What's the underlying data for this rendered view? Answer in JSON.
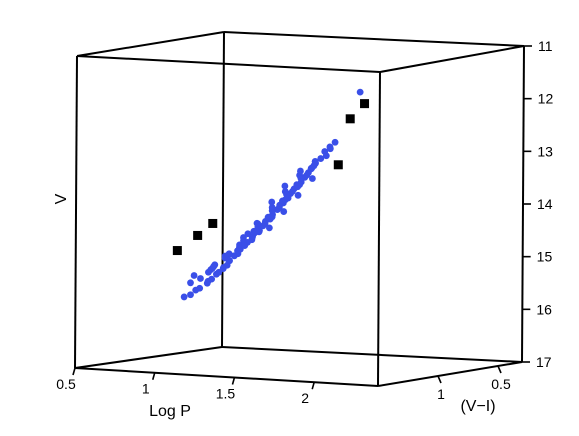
{
  "chart_data": {
    "type": "scatter3d",
    "axes": {
      "x": {
        "label": "Log P",
        "range": [
          0.5,
          2.4
        ],
        "ticks": [
          0.5,
          1,
          1.5,
          2
        ],
        "tick_labels": [
          "0.5",
          "1",
          "1.5",
          "2"
        ]
      },
      "y": {
        "label": "(V−I)",
        "range": [
          0.3,
          1.5
        ],
        "ticks": [
          0.5,
          1
        ],
        "tick_labels": [
          "0.5",
          "1"
        ]
      },
      "z": {
        "label": "V",
        "range": [
          11,
          17
        ],
        "inverted": true,
        "ticks": [
          11,
          12,
          13,
          14,
          15,
          16,
          17
        ],
        "tick_labels": [
          "11",
          "12",
          "13",
          "14",
          "15",
          "16",
          "17"
        ]
      }
    },
    "grid": false,
    "colors": {
      "main": "#3a4fe8",
      "outlier": "#000000"
    },
    "series": [
      {
        "marker": "circle",
        "color": "#3a4fe8",
        "points": [
          [
            0.62,
            0.75,
            15.9
          ],
          [
            0.66,
            0.75,
            15.85
          ],
          [
            0.7,
            0.76,
            15.75
          ],
          [
            0.74,
            0.78,
            15.7
          ],
          [
            0.78,
            0.77,
            15.6
          ],
          [
            0.8,
            0.79,
            15.55
          ],
          [
            0.83,
            0.8,
            15.5
          ],
          [
            0.86,
            0.8,
            15.4
          ],
          [
            0.89,
            0.82,
            15.35
          ],
          [
            0.92,
            0.82,
            15.25
          ],
          [
            0.95,
            0.83,
            15.2
          ],
          [
            0.98,
            0.85,
            15.1
          ],
          [
            1.01,
            0.85,
            15.0
          ],
          [
            1.04,
            0.86,
            14.95
          ],
          [
            1.07,
            0.88,
            14.85
          ],
          [
            1.1,
            0.88,
            14.75
          ],
          [
            1.13,
            0.9,
            14.7
          ],
          [
            1.16,
            0.9,
            14.6
          ],
          [
            1.19,
            0.92,
            14.5
          ],
          [
            1.22,
            0.92,
            14.45
          ],
          [
            1.25,
            0.93,
            14.35
          ],
          [
            1.28,
            0.95,
            14.25
          ],
          [
            1.31,
            0.95,
            14.2
          ],
          [
            1.34,
            0.97,
            14.1
          ],
          [
            1.37,
            0.97,
            14.0
          ],
          [
            1.4,
            0.99,
            13.9
          ],
          [
            1.43,
            1.0,
            13.85
          ],
          [
            1.46,
            1.0,
            13.75
          ],
          [
            1.49,
            1.02,
            13.65
          ],
          [
            1.52,
            1.03,
            13.55
          ],
          [
            1.55,
            1.04,
            13.5
          ],
          [
            1.58,
            1.05,
            13.4
          ],
          [
            1.61,
            1.06,
            13.3
          ],
          [
            1.64,
            1.07,
            13.2
          ],
          [
            1.67,
            1.08,
            13.1
          ],
          [
            1.7,
            1.09,
            13.0
          ],
          [
            1.74,
            1.1,
            12.9
          ],
          [
            1.78,
            1.12,
            12.75
          ],
          [
            1.82,
            1.13,
            12.65
          ],
          [
            1.86,
            1.14,
            12.55
          ],
          [
            0.76,
            0.8,
            15.5
          ],
          [
            0.82,
            0.78,
            15.3
          ],
          [
            0.88,
            0.84,
            15.2
          ],
          [
            0.94,
            0.8,
            15.0
          ],
          [
            1.0,
            0.88,
            14.95
          ],
          [
            1.06,
            0.84,
            14.7
          ],
          [
            1.12,
            0.92,
            14.6
          ],
          [
            1.18,
            0.88,
            14.4
          ],
          [
            1.24,
            0.96,
            14.3
          ],
          [
            1.3,
            0.92,
            14.05
          ],
          [
            1.36,
            1.0,
            13.95
          ],
          [
            1.42,
            0.96,
            13.7
          ],
          [
            1.48,
            1.05,
            13.6
          ],
          [
            1.54,
            1.0,
            13.35
          ],
          [
            1.6,
            1.09,
            13.25
          ],
          [
            1.66,
            1.04,
            13.0
          ],
          [
            1.72,
            1.12,
            12.95
          ],
          [
            1.8,
            1.1,
            12.7
          ],
          [
            0.72,
            0.8,
            15.45
          ],
          [
            0.78,
            0.74,
            15.35
          ],
          [
            0.84,
            0.84,
            15.35
          ],
          [
            0.9,
            0.78,
            15.05
          ],
          [
            0.96,
            0.86,
            15.05
          ],
          [
            1.02,
            0.82,
            14.8
          ],
          [
            1.08,
            0.9,
            14.8
          ],
          [
            1.14,
            0.86,
            14.5
          ],
          [
            1.2,
            0.95,
            14.55
          ],
          [
            1.26,
            0.9,
            14.2
          ],
          [
            1.32,
            0.98,
            14.15
          ],
          [
            1.38,
            0.94,
            13.85
          ],
          [
            1.44,
            1.02,
            13.8
          ],
          [
            1.5,
            0.98,
            13.5
          ],
          [
            1.56,
            1.06,
            13.45
          ],
          [
            1.62,
            1.02,
            13.15
          ],
          [
            1.68,
            1.1,
            13.1
          ],
          [
            1.76,
            1.08,
            12.85
          ],
          [
            0.85,
            0.81,
            15.25
          ],
          [
            0.97,
            0.84,
            15.1
          ],
          [
            1.09,
            0.87,
            14.78
          ],
          [
            1.21,
            0.91,
            14.48
          ],
          [
            1.33,
            0.96,
            14.15
          ],
          [
            1.45,
            1.01,
            13.78
          ],
          [
            1.57,
            1.05,
            13.45
          ],
          [
            1.69,
            1.09,
            13.05
          ],
          [
            1.15,
            0.89,
            14.65
          ],
          [
            1.27,
            0.94,
            14.3
          ],
          [
            1.39,
            0.98,
            13.95
          ],
          [
            1.51,
            1.03,
            13.6
          ],
          [
            1.63,
            1.07,
            13.25
          ],
          [
            1.03,
            0.85,
            14.9
          ],
          [
            0.91,
            0.81,
            15.28
          ],
          [
            1.22,
            0.94,
            14.3
          ],
          [
            1.35,
            0.99,
            13.85
          ],
          [
            1.47,
            1.04,
            13.5
          ],
          [
            1.59,
            1.07,
            13.18
          ],
          [
            0.69,
            0.79,
            15.6
          ],
          [
            1.11,
            0.87,
            14.55
          ],
          [
            1.29,
            0.93,
            14.38
          ],
          [
            1.41,
            0.97,
            14.03
          ],
          [
            1.53,
            1.01,
            13.68
          ],
          [
            1.65,
            1.05,
            13.32
          ],
          [
            2.1,
            1.25,
            11.5
          ]
        ]
      },
      {
        "marker": "square",
        "color": "#000000",
        "points": [
          [
            0.6,
            0.78,
            15.0
          ],
          [
            0.78,
            0.85,
            14.65
          ],
          [
            0.95,
            0.95,
            14.35
          ],
          [
            1.85,
            1.1,
            13.0
          ],
          [
            2.0,
            1.2,
            12.05
          ],
          [
            2.15,
            1.28,
            11.7
          ]
        ]
      }
    ]
  }
}
